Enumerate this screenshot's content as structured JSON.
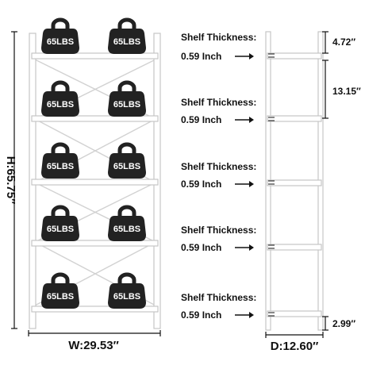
{
  "load_label": "65LBS",
  "dimensions": {
    "width": "W:29.53″",
    "height": "H:65.75″",
    "depth": "D:12.60″",
    "top_gap": "4.72″",
    "shelf_spacing": "13.15″",
    "bottom_gap": "2.99″"
  },
  "shelf_callouts": [
    {
      "title": "Shelf Thickness:",
      "value": "0.59 Inch"
    },
    {
      "title": "Shelf Thickness:",
      "value": "0.59 Inch"
    },
    {
      "title": "Shelf Thickness:",
      "value": "0.59 Inch"
    },
    {
      "title": "Shelf Thickness:",
      "value": "0.59 Inch"
    },
    {
      "title": "Shelf Thickness:",
      "value": "0.59 Inch"
    }
  ],
  "colors": {
    "weight_fill": "#222222",
    "frame_stroke": "#c8c8c8",
    "dimension_line": "#111111"
  },
  "icon_names": {
    "weight": "kettlebell-weight-icon",
    "arrow": "right-arrow-icon"
  }
}
